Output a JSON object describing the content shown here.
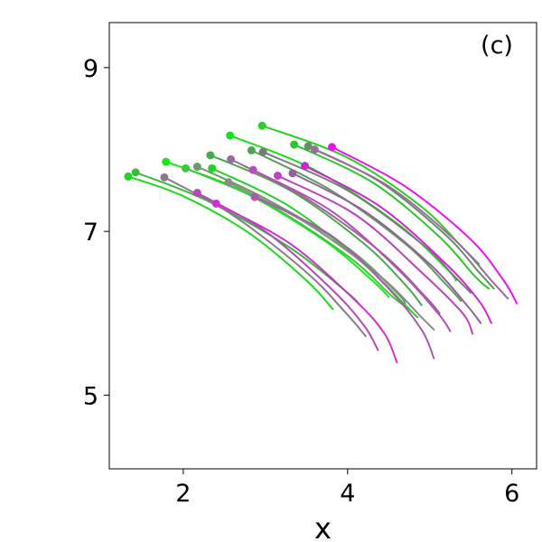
{
  "chart_data": {
    "type": "line",
    "title": "",
    "panel_label": "(c)",
    "xlabel": "x",
    "ylabel": "",
    "xlim": [
      1.1,
      6.3
    ],
    "ylim": [
      4.1,
      9.55
    ],
    "xticks": [
      2,
      4,
      6
    ],
    "xtick_labels": [
      "2",
      "4",
      "6"
    ],
    "yticks": [
      5,
      7,
      9
    ],
    "ytick_labels": [
      "5",
      "7",
      "9"
    ],
    "grid": false,
    "legend": "none",
    "marker": "start-point circle",
    "series": [
      {
        "color": "#1ed81e",
        "points": [
          [
            1.33,
            7.67
          ],
          [
            2.0,
            7.43
          ],
          [
            2.8,
            6.98
          ],
          [
            3.5,
            6.4
          ],
          [
            3.82,
            6.05
          ]
        ]
      },
      {
        "color": "#3cb83c",
        "points": [
          [
            1.42,
            7.72
          ],
          [
            2.3,
            7.37
          ],
          [
            3.3,
            6.8
          ],
          [
            4.0,
            6.25
          ],
          [
            4.15,
            6.1
          ]
        ]
      },
      {
        "color": "#8c7a8c",
        "points": [
          [
            1.77,
            7.66
          ],
          [
            2.6,
            7.2
          ],
          [
            3.5,
            6.5
          ],
          [
            4.0,
            5.98
          ],
          [
            4.22,
            5.72
          ]
        ]
      },
      {
        "color": "#10ee10",
        "points": [
          [
            1.79,
            7.85
          ],
          [
            2.7,
            7.5
          ],
          [
            3.7,
            6.9
          ],
          [
            4.3,
            6.4
          ],
          [
            4.5,
            6.2
          ]
        ]
      },
      {
        "color": "#b44ab4",
        "points": [
          [
            2.17,
            7.47
          ],
          [
            3.0,
            7.0
          ],
          [
            3.8,
            6.3
          ],
          [
            4.2,
            5.85
          ],
          [
            4.37,
            5.55
          ]
        ]
      },
      {
        "color": "#3cc83c",
        "points": [
          [
            2.03,
            7.77
          ],
          [
            3.0,
            7.35
          ],
          [
            4.0,
            6.7
          ],
          [
            4.55,
            6.2
          ],
          [
            4.75,
            6.05
          ]
        ]
      },
      {
        "color": "#6a9c6a",
        "points": [
          [
            2.17,
            7.79
          ],
          [
            3.0,
            7.4
          ],
          [
            4.0,
            6.8
          ],
          [
            4.6,
            6.25
          ],
          [
            4.7,
            6.12
          ]
        ]
      },
      {
        "color": "#d030d0",
        "points": [
          [
            2.4,
            7.34
          ],
          [
            3.3,
            6.85
          ],
          [
            4.1,
            6.15
          ],
          [
            4.45,
            5.75
          ],
          [
            4.6,
            5.4
          ]
        ]
      },
      {
        "color": "#4aa84a",
        "points": [
          [
            2.33,
            7.93
          ],
          [
            3.3,
            7.5
          ],
          [
            4.2,
            6.85
          ],
          [
            4.7,
            6.35
          ],
          [
            4.9,
            6.1
          ]
        ]
      },
      {
        "color": "#24d024",
        "points": [
          [
            2.35,
            7.77
          ],
          [
            3.3,
            7.3
          ],
          [
            4.2,
            6.6
          ],
          [
            4.7,
            6.1
          ],
          [
            4.85,
            5.95
          ]
        ]
      },
      {
        "color": "#8a8a8a",
        "points": [
          [
            2.55,
            7.6
          ],
          [
            3.5,
            7.1
          ],
          [
            4.4,
            6.45
          ],
          [
            4.9,
            5.95
          ],
          [
            5.05,
            5.8
          ]
        ]
      },
      {
        "color": "#18e018",
        "points": [
          [
            2.57,
            8.17
          ],
          [
            3.6,
            7.75
          ],
          [
            4.6,
            7.1
          ],
          [
            5.2,
            6.55
          ],
          [
            5.32,
            6.4
          ]
        ]
      },
      {
        "color": "#9a6a9a",
        "points": [
          [
            2.58,
            7.88
          ],
          [
            3.5,
            7.4
          ],
          [
            4.4,
            6.75
          ],
          [
            4.95,
            6.2
          ],
          [
            5.12,
            6.0
          ]
        ]
      },
      {
        "color": "#b84cb8",
        "points": [
          [
            2.85,
            7.75
          ],
          [
            3.8,
            7.25
          ],
          [
            4.6,
            6.55
          ],
          [
            5.1,
            6.0
          ],
          [
            5.25,
            5.78
          ]
        ]
      },
      {
        "color": "#5aa05a",
        "points": [
          [
            2.83,
            7.99
          ],
          [
            3.8,
            7.5
          ],
          [
            4.7,
            6.85
          ],
          [
            5.2,
            6.35
          ],
          [
            5.38,
            6.15
          ]
        ]
      },
      {
        "color": "#b058b0",
        "points": [
          [
            2.87,
            7.42
          ],
          [
            3.8,
            6.95
          ],
          [
            4.5,
            6.3
          ],
          [
            4.9,
            5.8
          ],
          [
            5.05,
            5.45
          ]
        ]
      },
      {
        "color": "#28d028",
        "points": [
          [
            2.96,
            8.29
          ],
          [
            4.0,
            7.9
          ],
          [
            4.9,
            7.3
          ],
          [
            5.4,
            6.8
          ],
          [
            5.6,
            6.6
          ]
        ]
      },
      {
        "color": "#7a7a7a",
        "points": [
          [
            2.97,
            7.97
          ],
          [
            4.0,
            7.5
          ],
          [
            4.9,
            6.85
          ],
          [
            5.3,
            6.45
          ],
          [
            5.5,
            6.25
          ]
        ]
      },
      {
        "color": "#c040c0",
        "points": [
          [
            3.15,
            7.68
          ],
          [
            4.1,
            7.2
          ],
          [
            4.9,
            6.5
          ],
          [
            5.4,
            6.0
          ],
          [
            5.52,
            5.75
          ]
        ]
      },
      {
        "color": "#2ac82a",
        "points": [
          [
            3.35,
            8.06
          ],
          [
            4.3,
            7.6
          ],
          [
            5.1,
            6.95
          ],
          [
            5.55,
            6.45
          ],
          [
            5.72,
            6.3
          ]
        ]
      },
      {
        "color": "#96609a",
        "points": [
          [
            3.33,
            7.71
          ],
          [
            4.2,
            7.25
          ],
          [
            5.0,
            6.6
          ],
          [
            5.45,
            6.1
          ],
          [
            5.62,
            5.88
          ]
        ]
      },
      {
        "color": "#d024d0",
        "points": [
          [
            3.48,
            7.8
          ],
          [
            4.4,
            7.3
          ],
          [
            5.2,
            6.6
          ],
          [
            5.6,
            6.15
          ],
          [
            5.75,
            5.88
          ]
        ]
      },
      {
        "color": "#6a8a6a",
        "points": [
          [
            3.52,
            8.04
          ],
          [
            4.4,
            7.6
          ],
          [
            5.2,
            6.95
          ],
          [
            5.6,
            6.5
          ],
          [
            5.78,
            6.3
          ]
        ]
      },
      {
        "color": "#9c6a9c",
        "points": [
          [
            3.6,
            8.0
          ],
          [
            4.5,
            7.55
          ],
          [
            5.3,
            6.9
          ],
          [
            5.75,
            6.4
          ],
          [
            5.95,
            6.18
          ]
        ]
      },
      {
        "color": "#ee10ee",
        "points": [
          [
            3.81,
            8.03
          ],
          [
            4.7,
            7.55
          ],
          [
            5.5,
            6.9
          ],
          [
            5.9,
            6.4
          ],
          [
            6.06,
            6.12
          ]
        ]
      }
    ]
  }
}
